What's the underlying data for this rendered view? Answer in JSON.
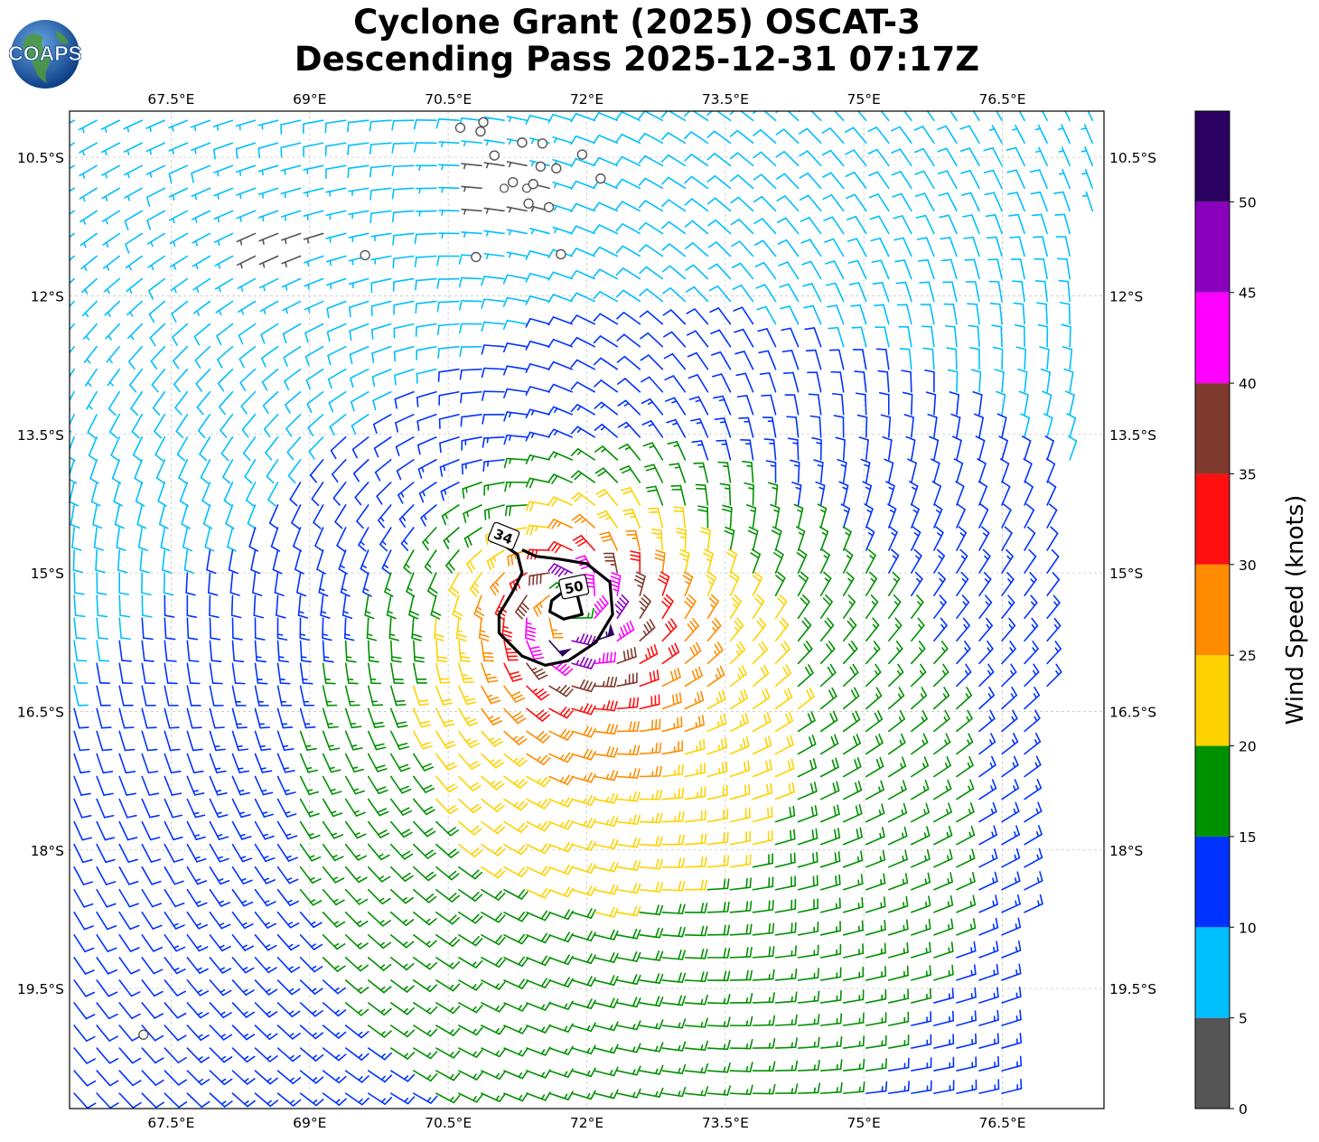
{
  "title": {
    "line1": "Cyclone Grant (2025) OSCAT-3",
    "line2": "Descending Pass 2025-12-31 07:17Z"
  },
  "logo": {
    "text": "COAPS",
    "ocean_color": "#1c5aa6",
    "land_color": "#4f9a3a"
  },
  "chart_data": {
    "type": "wind-barb-map",
    "xlim": [
      66.4,
      77.6
    ],
    "ylim": [
      -20.8,
      -10.0
    ],
    "x_ticks": [
      67.5,
      69,
      70.5,
      72,
      73.5,
      75,
      76.5
    ],
    "x_tick_labels": [
      "67.5°E",
      "69°E",
      "70.5°E",
      "72°E",
      "73.5°E",
      "75°E",
      "76.5°E"
    ],
    "y_ticks": [
      -10.5,
      -12,
      -13.5,
      -15,
      -16.5,
      -18,
      -19.5
    ],
    "y_tick_labels": [
      "10.5°S",
      "12°S",
      "13.5°S",
      "15°S",
      "16.5°S",
      "18°S",
      "19.5°S"
    ],
    "grid": true,
    "storm_center": {
      "lon": 71.8,
      "lat": -15.4
    },
    "swath_edges": {
      "west_lon_top": 66.4,
      "west_lon_bottom": 66.4,
      "east_lon_top": 77.6,
      "east_lon_bottom": 76.55
    },
    "calm_circles": [
      [
        70.63,
        -10.18
      ],
      [
        70.88,
        -10.12
      ],
      [
        70.85,
        -10.22
      ],
      [
        71.0,
        -10.48
      ],
      [
        71.3,
        -10.34
      ],
      [
        71.5,
        -10.6
      ],
      [
        71.52,
        -10.35
      ],
      [
        71.67,
        -10.62
      ],
      [
        71.95,
        -10.47
      ],
      [
        72.15,
        -10.73
      ],
      [
        71.2,
        -10.77
      ],
      [
        71.42,
        -10.79
      ],
      [
        71.37,
        -11.0
      ],
      [
        71.59,
        -11.04
      ],
      [
        69.6,
        -11.56
      ],
      [
        70.8,
        -11.58
      ],
      [
        71.72,
        -11.55
      ],
      [
        67.2,
        -20.0
      ]
    ],
    "contours": [
      {
        "label": "34",
        "label_lon": 71.1,
        "label_lat": -14.6,
        "path": [
          [
            70.95,
            -14.58
          ],
          [
            71.1,
            -14.7
          ],
          [
            71.25,
            -14.8
          ],
          [
            71.3,
            -15.0
          ],
          [
            71.2,
            -15.2
          ],
          [
            71.05,
            -15.45
          ],
          [
            71.05,
            -15.65
          ],
          [
            71.3,
            -15.9
          ],
          [
            71.55,
            -16.0
          ],
          [
            71.8,
            -15.95
          ],
          [
            72.1,
            -15.75
          ],
          [
            72.28,
            -15.45
          ],
          [
            72.25,
            -15.1
          ],
          [
            72.0,
            -14.9
          ],
          [
            71.7,
            -14.85
          ],
          [
            71.45,
            -14.82
          ],
          [
            71.3,
            -14.75
          ]
        ]
      },
      {
        "label": "50",
        "label_lon": 71.86,
        "label_lat": -15.15,
        "path": [
          [
            71.75,
            -15.2
          ],
          [
            71.9,
            -15.25
          ],
          [
            71.95,
            -15.45
          ],
          [
            71.75,
            -15.5
          ],
          [
            71.6,
            -15.42
          ],
          [
            71.62,
            -15.3
          ],
          [
            71.75,
            -15.2
          ]
        ]
      }
    ],
    "wind_field": {
      "model": "cyclonic vortex (southern hemisphere, clockwise) with northern ridge/calm zone",
      "max_wind_knots": 50,
      "radius_of_max_wind_deg": 0.4
    },
    "colorbar": {
      "label": "Wind Speed (knots)",
      "bins": [
        0,
        5,
        10,
        15,
        20,
        25,
        30,
        35,
        40,
        45,
        50,
        55
      ],
      "colors": [
        "#555555",
        "#00bfff",
        "#0033ff",
        "#009100",
        "#ffd200",
        "#ff8c00",
        "#ff1010",
        "#7f3b2d",
        "#ff00ff",
        "#8a00be",
        "#2a0060"
      ],
      "tick_values": [
        0,
        5,
        10,
        15,
        20,
        25,
        30,
        35,
        40,
        45,
        50
      ],
      "tick_labels": [
        "0",
        "5",
        "10",
        "15",
        "20",
        "25",
        "30",
        "35",
        "40",
        "45",
        "50"
      ]
    }
  }
}
